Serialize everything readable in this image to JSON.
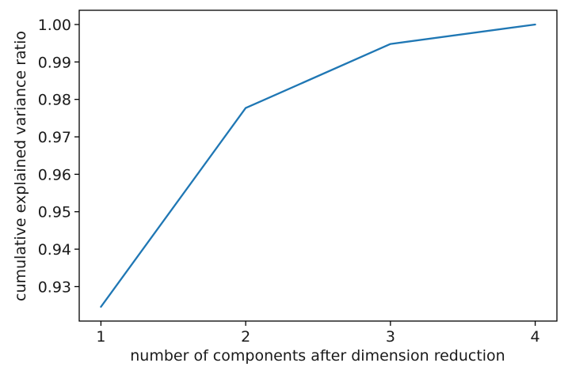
{
  "figure": {
    "background": "#ffffff"
  },
  "chart_data": {
    "type": "line",
    "title": "",
    "xlabel": "number of components after dimension reduction",
    "ylabel": "cumulative explained variance ratio",
    "x": [
      1,
      2,
      3,
      4
    ],
    "y": [
      0.9246,
      0.9777,
      0.9948,
      1.0
    ],
    "series": [
      {
        "name": "cumulative explained variance",
        "x": [
          1,
          2,
          3,
          4
        ],
        "values": [
          0.9246,
          0.9777,
          0.9948,
          1.0
        ]
      }
    ],
    "xticks": [
      1,
      2,
      3,
      4
    ],
    "xtick_labels": [
      "1",
      "2",
      "3",
      "4"
    ],
    "yticks": [
      0.93,
      0.94,
      0.95,
      0.96,
      0.97,
      0.98,
      0.99,
      1.0
    ],
    "ytick_labels": [
      "0.93",
      "0.94",
      "0.95",
      "0.96",
      "0.97",
      "0.98",
      "0.99",
      "1.00"
    ],
    "xlim": [
      0.85,
      4.15
    ],
    "ylim": [
      0.9208,
      1.0038
    ],
    "grid": false,
    "legend": "none",
    "line_color": "#1f77b4",
    "line_width": 2.3,
    "axis_color": "#000000",
    "text_color": "#1a1a1a"
  }
}
